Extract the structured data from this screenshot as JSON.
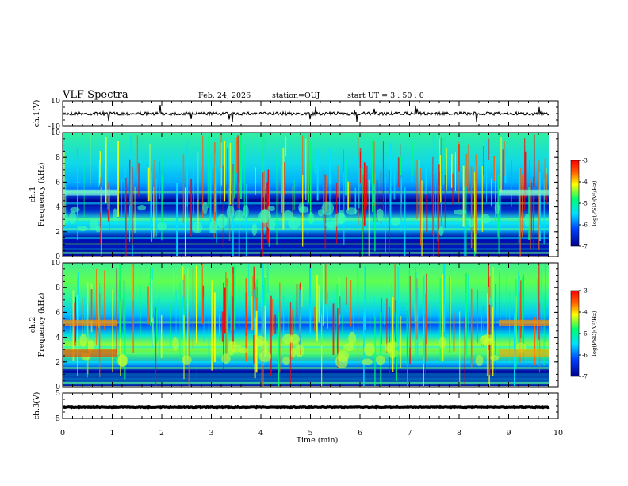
{
  "header": {
    "title": "VLF Spectra",
    "date": "Feb. 24, 2026",
    "station": "station=OUJ",
    "start_ut": "start UT =  3 : 50 : 0"
  },
  "chart_data": [
    {
      "type": "line",
      "ylabel": "ch.1(V)",
      "ylim": [
        -10,
        10
      ],
      "yticks": [
        {
          "v": 10,
          "label": "10"
        },
        {
          "v": -10,
          "label": "-10"
        }
      ],
      "baseline": 0,
      "grid": false
    },
    {
      "type": "heatmap",
      "ylabel": "ch.1\nFrequency (kHz)",
      "xlim": [
        0,
        10
      ],
      "ylim": [
        0,
        10
      ],
      "yticks": [
        0,
        2,
        4,
        6,
        8,
        10
      ],
      "colorbar": {
        "label": "log(PSD)(V²/Hz)",
        "range": [
          -7,
          -3
        ],
        "ticks": [
          -3,
          -4,
          -5,
          -6,
          -7
        ]
      },
      "bands_khz": [
        0.3,
        0.6,
        1.0,
        1.5,
        2.2,
        2.7,
        3.0,
        4.3,
        5.2
      ],
      "grid": false
    },
    {
      "type": "heatmap",
      "ylabel": "ch.2\nFrequency (kHz)",
      "xlim": [
        0,
        10
      ],
      "ylim": [
        0,
        10
      ],
      "yticks": [
        0,
        2,
        4,
        6,
        8,
        10
      ],
      "colorbar": {
        "label": "log(PSD)(V²/Hz)",
        "range": [
          -7,
          -3
        ],
        "ticks": [
          -3,
          -4,
          -5,
          -6,
          -7
        ]
      },
      "bands_khz": [
        0.3,
        1.0,
        1.5,
        2.0,
        2.7,
        3.2,
        5.2
      ],
      "grid": false
    },
    {
      "type": "line",
      "ylabel": "ch.3(V)",
      "ylim": [
        -5,
        5
      ],
      "yticks": [
        {
          "v": 5,
          "label": "5"
        },
        {
          "v": -5,
          "label": "-5"
        }
      ],
      "baseline": -0.5,
      "grid": false
    }
  ],
  "x_axis": {
    "label": "Time (min)",
    "range": [
      0,
      10
    ],
    "ticks": [
      "0",
      "1",
      "2",
      "3",
      "4",
      "5",
      "6",
      "7",
      "8",
      "9",
      "10"
    ]
  },
  "colors": {
    "background_low": "#00008c",
    "mid": "#00e0ff",
    "high": "#ffff00",
    "peak": "#ff0000",
    "trace": "#000000"
  }
}
